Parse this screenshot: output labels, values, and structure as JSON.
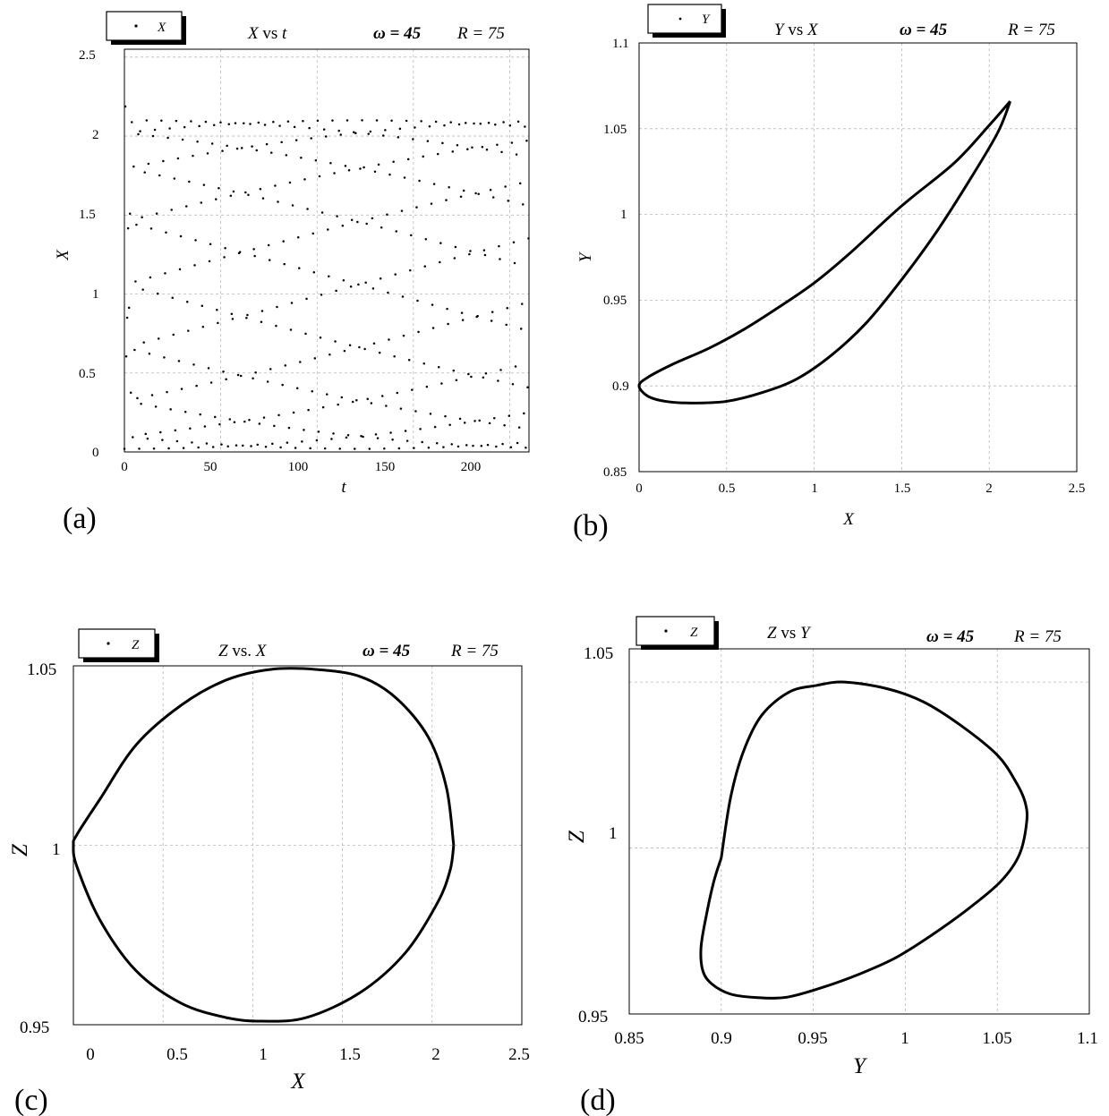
{
  "panels": [
    {
      "label": "(a)",
      "legend": "X",
      "title_var": "X",
      "title_vs": " vs ",
      "title_var2": "t",
      "omega_text": "ω = 45",
      "r_text": "R = 75",
      "xlabel": "t",
      "ylabel": "X",
      "xticks": [
        "0",
        "50",
        "100",
        "150",
        "200"
      ],
      "yticks": [
        "0",
        "0.5",
        "1",
        "1.5",
        "2",
        "2.5"
      ]
    },
    {
      "label": "(b)",
      "legend": "Y",
      "title_var": "Y",
      "title_vs": " vs ",
      "title_var2": "X",
      "omega_text": "ω = 45",
      "r_text": "R = 75",
      "xlabel": "X",
      "ylabel": "Y",
      "xticks": [
        "0",
        "0.5",
        "1",
        "1.5",
        "2",
        "2.5"
      ],
      "yticks": [
        "0.85",
        "0.9",
        "0.95",
        "1",
        "1.05",
        "1.1"
      ]
    },
    {
      "label": "(c)",
      "legend": "Z",
      "title_var": "Z",
      "title_vs": " vs. ",
      "title_var2": "X",
      "omega_text": "ω = 45",
      "r_text": "R = 75",
      "xlabel": "X",
      "ylabel": "Z",
      "xticks": [
        "0",
        "0.5",
        "1",
        "1.5",
        "2",
        "2.5"
      ],
      "yticks": [
        "0.95",
        "1",
        "1.05"
      ]
    },
    {
      "label": "(d)",
      "legend": "Z",
      "title_var": "Z",
      "title_vs": " vs ",
      "title_var2": "Y",
      "omega_text": "ω = 45",
      "r_text": "R = 75",
      "xlabel": "Y",
      "ylabel": "Z",
      "xticks": [
        "0.85",
        "0.9",
        "0.95",
        "1",
        "1.05",
        "1.1"
      ],
      "yticks": [
        "0.95",
        "1",
        "1.05"
      ]
    }
  ],
  "chart_data": [
    {
      "type": "scatter",
      "title": "X vs t",
      "xlabel": "t",
      "ylabel": "X",
      "xlim": [
        0,
        210
      ],
      "ylim": [
        0,
        2.55
      ],
      "grid": true,
      "legend_position": "top-left",
      "series": [
        {
          "name": "X",
          "model": {
            "center": 1.06,
            "amplitude": 1.04,
            "omega": 45,
            "sampling_interval": 0.48
          },
          "transient": {
            "t_end": 4,
            "max": 2.4
          }
        }
      ]
    },
    {
      "type": "line",
      "title": "Y vs X",
      "xlabel": "X",
      "ylabel": "Y",
      "xlim": [
        0,
        2.5
      ],
      "ylim": [
        0.85,
        1.1
      ],
      "grid": true,
      "legend_position": "top-left",
      "series": [
        {
          "name": "Y",
          "points": [
            [
              2.12,
              1.066
            ],
            [
              2.0,
              1.052
            ],
            [
              1.8,
              1.03
            ],
            [
              1.5,
              1.005
            ],
            [
              1.2,
              0.977
            ],
            [
              1.0,
              0.96
            ],
            [
              0.8,
              0.946
            ],
            [
              0.6,
              0.933
            ],
            [
              0.4,
              0.922
            ],
            [
              0.2,
              0.913
            ],
            [
              0.05,
              0.905
            ],
            [
              0.0,
              0.9
            ],
            [
              0.05,
              0.894
            ],
            [
              0.15,
              0.891
            ],
            [
              0.3,
              0.89
            ],
            [
              0.5,
              0.891
            ],
            [
              0.7,
              0.896
            ],
            [
              0.9,
              0.904
            ],
            [
              1.1,
              0.918
            ],
            [
              1.3,
              0.937
            ],
            [
              1.5,
              0.962
            ],
            [
              1.7,
              0.99
            ],
            [
              1.9,
              1.022
            ],
            [
              2.05,
              1.048
            ],
            [
              2.12,
              1.066
            ]
          ]
        }
      ]
    },
    {
      "type": "line",
      "title": "Z vs. X",
      "xlabel": "X",
      "ylabel": "Z",
      "xlim": [
        0,
        2.5
      ],
      "ylim": [
        0.95,
        1.05
      ],
      "grid": true,
      "legend_position": "top-left",
      "series": [
        {
          "name": "Z",
          "points": [
            [
              2.12,
              1.0
            ],
            [
              2.08,
              1.016
            ],
            [
              1.98,
              1.03
            ],
            [
              1.8,
              1.041
            ],
            [
              1.6,
              1.047
            ],
            [
              1.35,
              1.049
            ],
            [
              1.1,
              1.049
            ],
            [
              0.85,
              1.046
            ],
            [
              0.6,
              1.039
            ],
            [
              0.35,
              1.028
            ],
            [
              0.15,
              1.013
            ],
            [
              0.02,
              1.003
            ],
            [
              0.0,
              1.0
            ],
            [
              0.02,
              0.994
            ],
            [
              0.15,
              0.979
            ],
            [
              0.35,
              0.965
            ],
            [
              0.6,
              0.956
            ],
            [
              0.85,
              0.952
            ],
            [
              1.05,
              0.951
            ],
            [
              1.3,
              0.952
            ],
            [
              1.6,
              0.959
            ],
            [
              1.85,
              0.97
            ],
            [
              2.03,
              0.984
            ],
            [
              2.1,
              0.993
            ],
            [
              2.12,
              1.0
            ]
          ]
        }
      ]
    },
    {
      "type": "line",
      "title": "Z vs Y",
      "xlabel": "Y",
      "ylabel": "Z",
      "xlim": [
        0.85,
        1.1
      ],
      "ylim": [
        0.95,
        1.06
      ],
      "grid": true,
      "legend_position": "top-left",
      "series": [
        {
          "name": "Z",
          "points": [
            [
              0.9,
              0.997
            ],
            [
              0.905,
              1.015
            ],
            [
              0.912,
              1.029
            ],
            [
              0.922,
              1.04
            ],
            [
              0.937,
              1.047
            ],
            [
              0.952,
              1.049
            ],
            [
              0.967,
              1.05
            ],
            [
              0.99,
              1.048
            ],
            [
              1.01,
              1.044
            ],
            [
              1.03,
              1.037
            ],
            [
              1.05,
              1.028
            ],
            [
              1.06,
              1.02
            ],
            [
              1.065,
              1.014
            ],
            [
              1.066,
              1.008
            ],
            [
              1.062,
              0.998
            ],
            [
              1.052,
              0.99
            ],
            [
              1.035,
              0.982
            ],
            [
              1.015,
              0.974
            ],
            [
              0.995,
              0.967
            ],
            [
              0.975,
              0.962
            ],
            [
              0.955,
              0.958
            ],
            [
              0.935,
              0.955
            ],
            [
              0.918,
              0.955
            ],
            [
              0.905,
              0.956
            ],
            [
              0.895,
              0.959
            ],
            [
              0.89,
              0.963
            ],
            [
              0.889,
              0.97
            ],
            [
              0.892,
              0.98
            ],
            [
              0.896,
              0.99
            ],
            [
              0.9,
              0.997
            ]
          ]
        }
      ]
    }
  ]
}
